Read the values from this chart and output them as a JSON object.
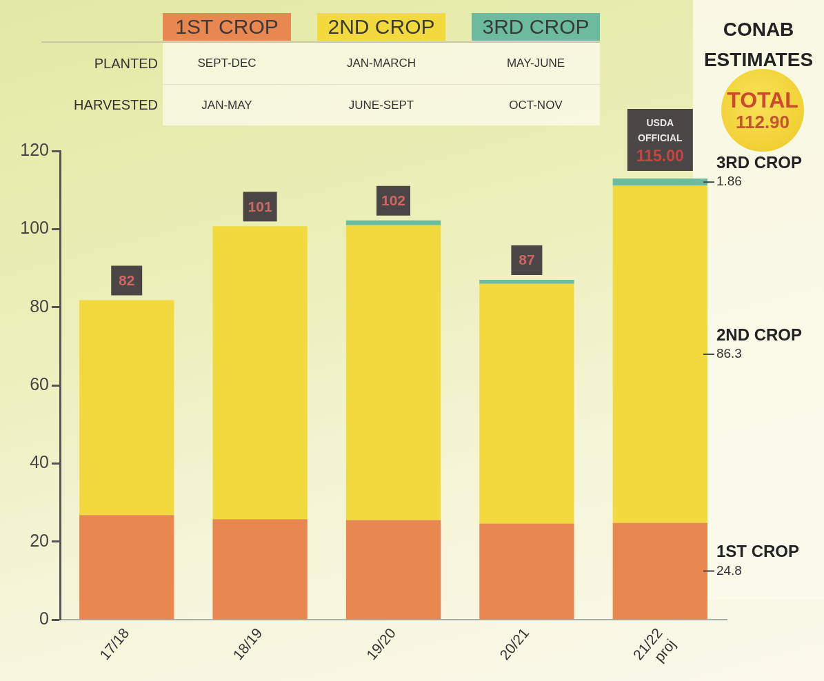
{
  "chart_data": {
    "type": "bar",
    "title": "CONAB ESTIMATES",
    "categories": [
      "17/18",
      "18/19",
      "19/20",
      "20/21",
      "21/22\nproj"
    ],
    "series": [
      {
        "name": "1ST CROP",
        "color": "#e8874f",
        "values": [
          26.8,
          25.7,
          25.5,
          24.6,
          24.8
        ],
        "value_labels": [
          null,
          null,
          null,
          null,
          "24.8"
        ]
      },
      {
        "name": "2ND CROP",
        "color": "#f2da3e",
        "values": [
          55.0,
          75.0,
          75.5,
          61.4,
          86.3
        ],
        "value_labels": [
          null,
          null,
          null,
          null,
          "86.3"
        ]
      },
      {
        "name": "3RD CROP",
        "color": "#6dbb9f",
        "values": [
          null,
          null,
          1.2,
          1.0,
          1.86
        ],
        "value_labels": [
          null,
          null,
          null,
          null,
          "1.86"
        ]
      }
    ],
    "stacked": true,
    "ylim": [
      0,
      120
    ],
    "yticks": [
      0,
      20,
      40,
      60,
      80,
      100,
      120
    ],
    "legend": "top",
    "totals": [
      "82",
      "101",
      "102",
      "87",
      null
    ],
    "annotations": [
      "PLANTED",
      "SEPT-DEC",
      "JAN-MARCH",
      "MAY-JUNE",
      "HARVESTED",
      "JAN-MAY",
      "JUNE-SEPT",
      "OCT-NOV",
      "TOTAL 112.90",
      "USDA OFFICIAL 115.00"
    ]
  }
}
